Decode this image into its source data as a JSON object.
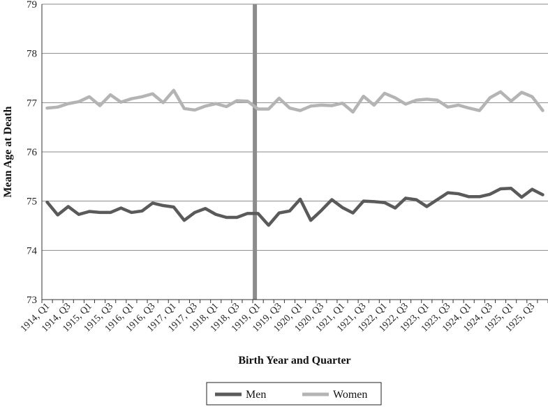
{
  "chart_data": {
    "type": "line",
    "title": "",
    "xlabel": "Birth Year and Quarter",
    "ylabel": "Mean Age at Death",
    "ylim": [
      73,
      79
    ],
    "yticks": [
      73,
      74,
      75,
      76,
      77,
      78,
      79
    ],
    "grid": "horizontal",
    "legend_position": "bottom",
    "reference_line_x": "1919, Q1",
    "x_tick_labels": [
      "1914, Q1",
      "1914, Q3",
      "1915, Q1",
      "1915, Q3",
      "1916, Q1",
      "1916, Q3",
      "1917, Q1",
      "1917, Q3",
      "1918, Q1",
      "1918, Q3",
      "1919, Q1",
      "1919, Q3",
      "1920, Q1",
      "1920, Q3",
      "1921, Q1",
      "1921, Q3",
      "1922, Q1",
      "1922, Q3",
      "1923, Q1",
      "1923, Q3",
      "1924, Q1",
      "1924, Q3",
      "1925, Q1",
      "1925, Q3"
    ],
    "categories": [
      "1914, Q1",
      "1914, Q2",
      "1914, Q3",
      "1914, Q4",
      "1915, Q1",
      "1915, Q2",
      "1915, Q3",
      "1915, Q4",
      "1916, Q1",
      "1916, Q2",
      "1916, Q3",
      "1916, Q4",
      "1917, Q1",
      "1917, Q2",
      "1917, Q3",
      "1917, Q4",
      "1918, Q1",
      "1918, Q2",
      "1918, Q3",
      "1918, Q4",
      "1919, Q1",
      "1919, Q2",
      "1919, Q3",
      "1919, Q4",
      "1920, Q1",
      "1920, Q2",
      "1920, Q3",
      "1920, Q4",
      "1921, Q1",
      "1921, Q2",
      "1921, Q3",
      "1921, Q4",
      "1922, Q1",
      "1922, Q2",
      "1922, Q3",
      "1922, Q4",
      "1923, Q1",
      "1923, Q2",
      "1923, Q3",
      "1923, Q4",
      "1924, Q1",
      "1924, Q2",
      "1924, Q3",
      "1924, Q4",
      "1925, Q1",
      "1925, Q2",
      "1925, Q3",
      "1925, Q4"
    ],
    "series": [
      {
        "name": "Men",
        "color": "#5a5a5a",
        "values": [
          74.98,
          74.72,
          74.89,
          74.73,
          74.79,
          74.77,
          74.77,
          74.86,
          74.77,
          74.8,
          74.96,
          74.91,
          74.88,
          74.61,
          74.77,
          74.85,
          74.73,
          74.67,
          74.67,
          74.75,
          74.75,
          74.51,
          74.76,
          74.8,
          75.04,
          74.61,
          74.81,
          75.03,
          74.87,
          74.76,
          75.0,
          74.99,
          74.97,
          74.86,
          75.06,
          75.03,
          74.89,
          75.03,
          75.17,
          75.15,
          75.09,
          75.09,
          75.14,
          75.25,
          75.26,
          75.08,
          75.24,
          75.13
        ]
      },
      {
        "name": "Women",
        "color": "#b4b4b4",
        "values": [
          76.89,
          76.91,
          76.98,
          77.02,
          77.12,
          76.94,
          77.16,
          77.01,
          77.08,
          77.12,
          77.18,
          77.0,
          77.25,
          76.88,
          76.85,
          76.93,
          76.98,
          76.92,
          77.04,
          77.03,
          76.87,
          76.87,
          77.09,
          76.89,
          76.84,
          76.93,
          76.95,
          76.94,
          76.99,
          76.81,
          77.13,
          76.95,
          77.19,
          77.1,
          76.97,
          77.05,
          77.07,
          77.05,
          76.91,
          76.95,
          76.89,
          76.84,
          77.1,
          77.22,
          77.03,
          77.21,
          77.12,
          76.84
        ]
      }
    ]
  }
}
